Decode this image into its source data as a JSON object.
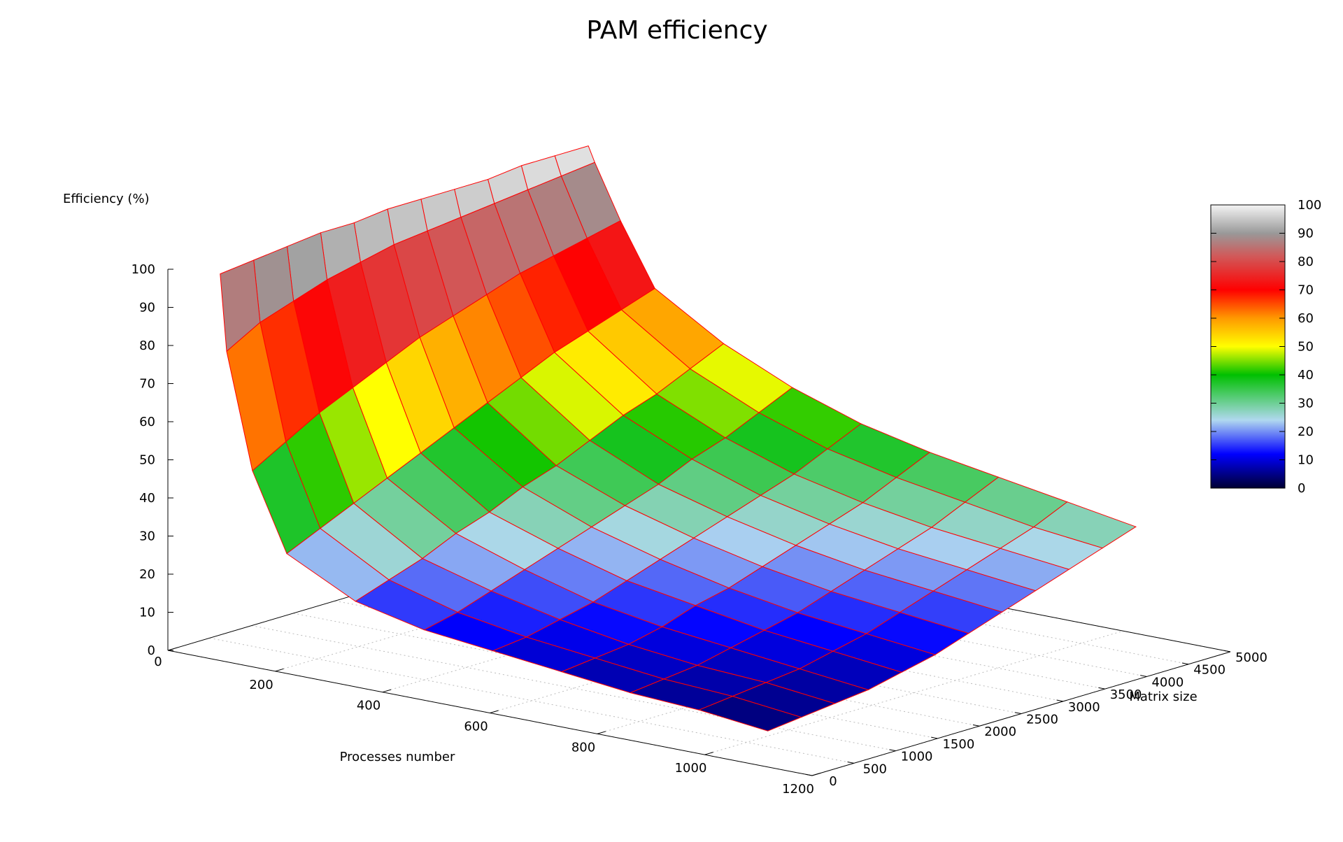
{
  "chart_data": {
    "type": "surface3d",
    "title": "PAM efficiency",
    "zlabel": "Efficiency (%)",
    "xlabel": "Processes number",
    "ylabel": "Matrix size",
    "xlim": [
      0,
      1200
    ],
    "ylim": [
      0,
      5000
    ],
    "zlim": [
      0,
      100
    ],
    "x_ticks": [
      "200",
      "400",
      "600",
      "800",
      "1000",
      "1200"
    ],
    "y_ticks": [
      "0",
      "500",
      "1000",
      "1500",
      "2000",
      "2500",
      "3000",
      "3500",
      "4000",
      "4500",
      "5000"
    ],
    "z_ticks": [
      "0",
      "10",
      "20",
      "30",
      "40",
      "50",
      "60",
      "70",
      "80",
      "90",
      "100"
    ],
    "origin_tick": "0",
    "grid": "on (floor, dotted)",
    "colorbar": {
      "placement": "right",
      "range": [
        0,
        100
      ],
      "ticks": [
        "0",
        "10",
        "20",
        "30",
        "40",
        "50",
        "60",
        "70",
        "80",
        "90",
        "100"
      ],
      "colormap": [
        {
          "value": 0,
          "color": "#000033"
        },
        {
          "value": 12,
          "color": "#0000ff"
        },
        {
          "value": 24,
          "color": "#b0d8ef"
        },
        {
          "value": 40,
          "color": "#00c000"
        },
        {
          "value": 50,
          "color": "#ffff00"
        },
        {
          "value": 60,
          "color": "#ff9900"
        },
        {
          "value": 70,
          "color": "#ff0000"
        },
        {
          "value": 82,
          "color": "#d05a5a"
        },
        {
          "value": 90,
          "color": "#999999"
        },
        {
          "value": 100,
          "color": "#f4f4f4"
        }
      ]
    },
    "mesh_color": "#ff0000",
    "surface": {
      "x_processes": [
        4,
        16,
        64,
        128,
        256,
        384,
        512,
        640,
        768,
        896,
        1024
      ],
      "y_matrix_size": [
        600,
        1000,
        1400,
        1800,
        2200,
        2600,
        3000,
        3400,
        3800,
        4200,
        4600,
        5000
      ],
      "z_efficiency": [
        [
          95,
          75,
          45,
          25,
          16,
          12,
          10,
          8,
          6,
          5,
          3
        ],
        [
          96,
          80,
          50,
          29,
          19,
          14,
          11,
          9,
          7,
          6,
          4
        ],
        [
          97,
          83,
          55,
          33,
          22,
          17,
          13,
          10,
          8,
          7,
          5
        ],
        [
          98,
          86,
          59,
          37,
          26,
          20,
          15,
          12,
          10,
          8,
          6
        ],
        [
          98,
          88,
          63,
          41,
          29,
          23,
          18,
          15,
          12,
          10,
          8
        ],
        [
          99,
          90,
          67,
          45,
          33,
          26,
          21,
          17,
          14,
          12,
          10
        ],
        [
          99,
          91,
          70,
          49,
          36,
          29,
          24,
          20,
          17,
          15,
          13
        ],
        [
          99,
          92,
          73,
          53,
          40,
          32,
          27,
          23,
          20,
          18,
          16
        ],
        [
          99,
          93,
          76,
          57,
          44,
          36,
          30,
          26,
          23,
          21,
          19
        ],
        [
          100,
          94,
          78,
          60,
          47,
          39,
          33,
          29,
          26,
          24,
          22
        ],
        [
          100,
          95,
          80,
          63,
          51,
          43,
          37,
          33,
          30,
          27,
          25
        ],
        [
          100,
          96,
          82,
          66,
          55,
          47,
          41,
          37,
          34,
          31,
          28
        ]
      ]
    }
  }
}
